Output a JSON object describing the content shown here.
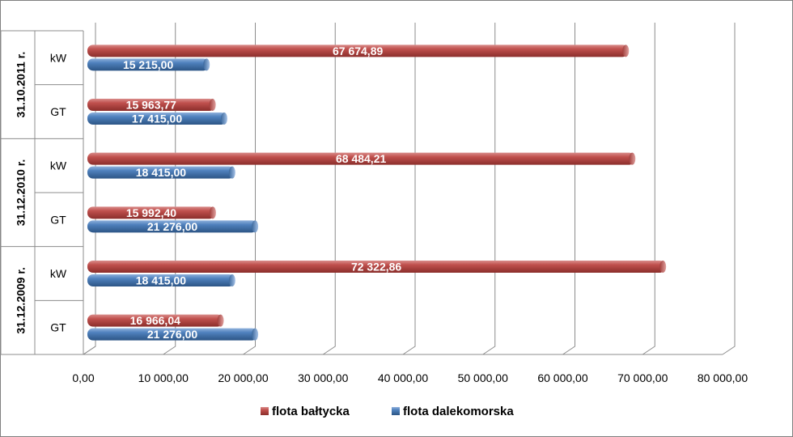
{
  "chart_data": {
    "type": "bar",
    "orientation": "horizontal",
    "xlim": [
      0,
      80000
    ],
    "x_ticks": [
      "0,00",
      "10 000,00",
      "20 000,00",
      "30 000,00",
      "40 000,00",
      "50 000,00",
      "60 000,00",
      "70 000,00",
      "80 000,00"
    ],
    "groups": [
      {
        "label": "31.10.2011 r.",
        "categories": [
          {
            "label": "kW",
            "values": {
              "baltycka": 67674.89,
              "dalekomorska": 15215.0
            },
            "labels": {
              "baltycka": "67 674,89",
              "dalekomorska": "15 215,00"
            }
          },
          {
            "label": "GT",
            "values": {
              "baltycka": 15963.77,
              "dalekomorska": 17415.0
            },
            "labels": {
              "baltycka": "15 963,77",
              "dalekomorska": "17 415,00"
            }
          }
        ]
      },
      {
        "label": "31.12.2010 r.",
        "categories": [
          {
            "label": "kW",
            "values": {
              "baltycka": 68484.21,
              "dalekomorska": 18415.0
            },
            "labels": {
              "baltycka": "68 484,21",
              "dalekomorska": "18 415,00"
            }
          },
          {
            "label": "GT",
            "values": {
              "baltycka": 15992.4,
              "dalekomorska": 21276.0
            },
            "labels": {
              "baltycka": "15 992,40",
              "dalekomorska": "21 276,00"
            }
          }
        ]
      },
      {
        "label": "31.12.2009 r.",
        "categories": [
          {
            "label": "kW",
            "values": {
              "baltycka": 72322.86,
              "dalekomorska": 18415.0
            },
            "labels": {
              "baltycka": "72 322,86",
              "dalekomorska": "18 415,00"
            }
          },
          {
            "label": "GT",
            "values": {
              "baltycka": 16966.04,
              "dalekomorska": 21276.0
            },
            "labels": {
              "baltycka": "16 966,04",
              "dalekomorska": "21 276,00"
            }
          }
        ]
      }
    ],
    "series": [
      {
        "key": "baltycka",
        "name": "flota bałtycka",
        "color": "#c0504d"
      },
      {
        "key": "dalekomorska",
        "name": "flota dalekomorska",
        "color": "#4f81bd"
      }
    ],
    "legend": "bottom",
    "grid": true
  }
}
